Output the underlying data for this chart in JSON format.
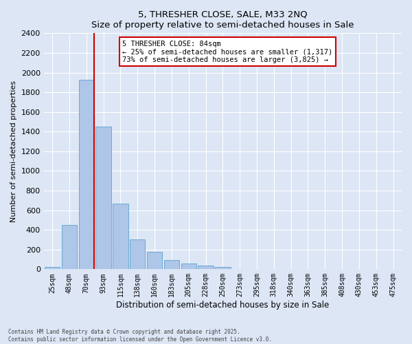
{
  "title": "5, THRESHER CLOSE, SALE, M33 2NQ",
  "subtitle": "Size of property relative to semi-detached houses in Sale",
  "xlabel": "Distribution of semi-detached houses by size in Sale",
  "ylabel": "Number of semi-detached properties",
  "bar_labels": [
    "25sqm",
    "48sqm",
    "70sqm",
    "93sqm",
    "115sqm",
    "138sqm",
    "160sqm",
    "183sqm",
    "205sqm",
    "228sqm",
    "250sqm",
    "273sqm",
    "295sqm",
    "318sqm",
    "340sqm",
    "363sqm",
    "385sqm",
    "408sqm",
    "430sqm",
    "453sqm",
    "475sqm"
  ],
  "bar_values": [
    25,
    450,
    1930,
    1450,
    665,
    305,
    175,
    95,
    60,
    35,
    20,
    0,
    0,
    0,
    0,
    0,
    0,
    0,
    0,
    0,
    0
  ],
  "bar_color": "#aec6e8",
  "bar_edge_color": "#6aaad4",
  "ylim": [
    0,
    2400
  ],
  "yticks": [
    0,
    200,
    400,
    600,
    800,
    1000,
    1200,
    1400,
    1600,
    1800,
    2000,
    2200,
    2400
  ],
  "vline_color": "#cc0000",
  "annotation_text": "5 THRESHER CLOSE: 84sqm\n← 25% of semi-detached houses are smaller (1,317)\n73% of semi-detached houses are larger (3,825) →",
  "annotation_box_color": "#cc0000",
  "footer": "Contains HM Land Registry data © Crown copyright and database right 2025.\nContains public sector information licensed under the Open Government Licence v3.0.",
  "background_color": "#dce6f5",
  "plot_bg_color": "#dce6f5",
  "grid_color": "#ffffff"
}
